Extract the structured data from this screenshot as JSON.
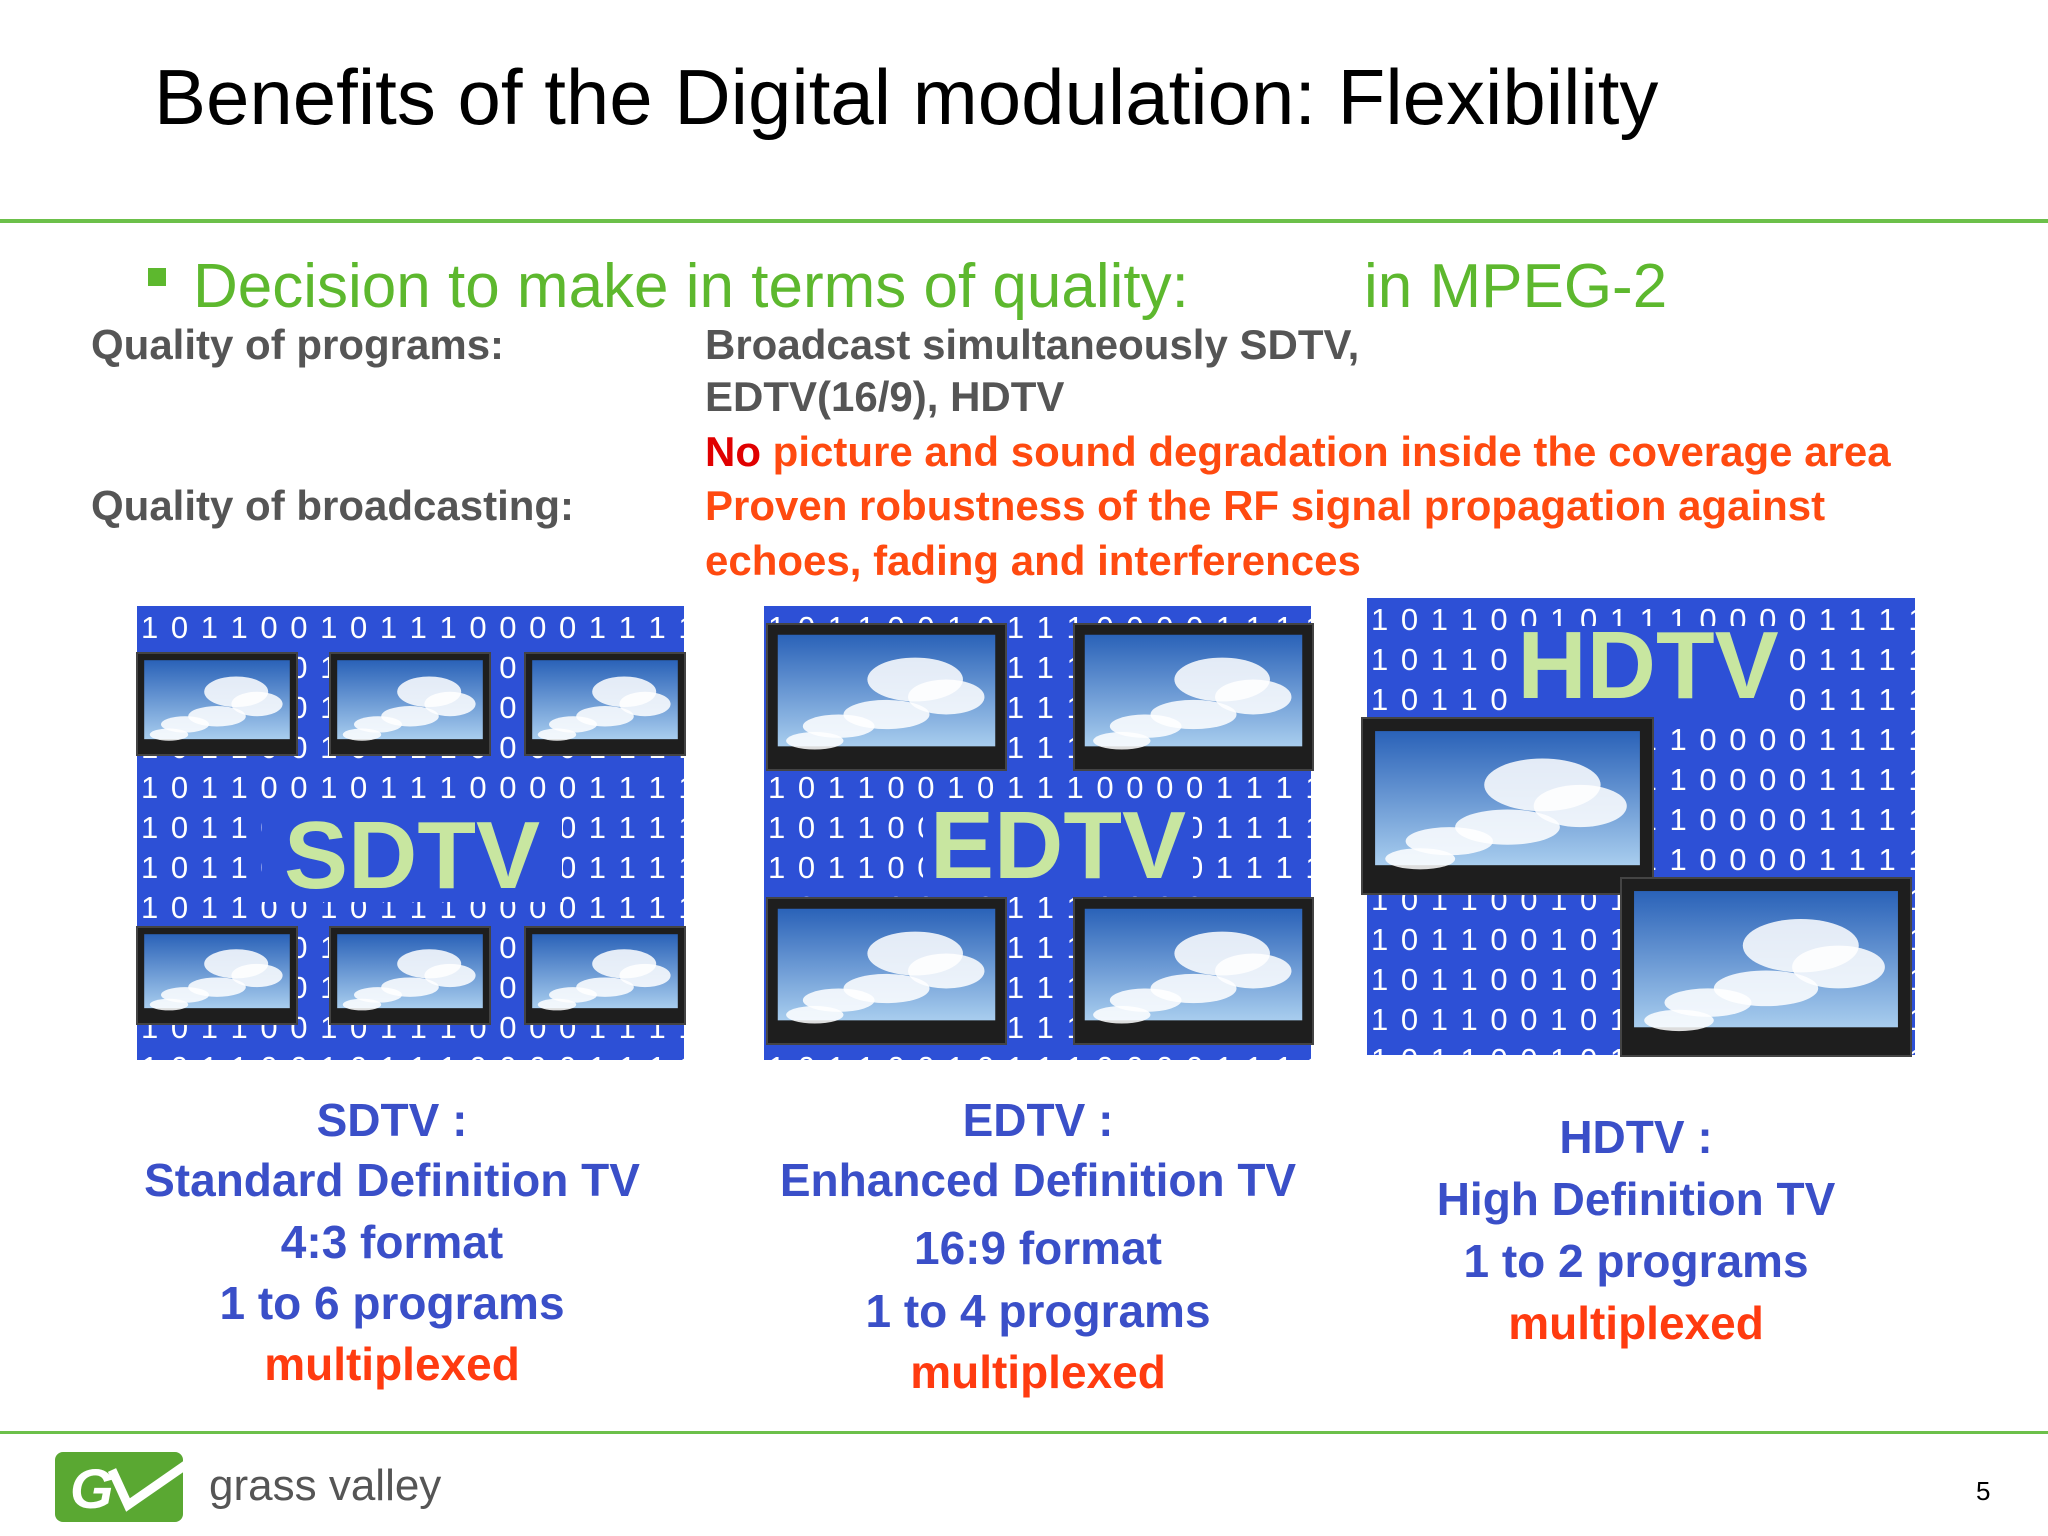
{
  "header": {
    "title": "Benefits of the Digital modulation: Flexibility"
  },
  "bullet": {
    "text": "Decision to make in terms of quality:",
    "suffix": "in MPEG-2"
  },
  "quality": [
    {
      "label": "Quality of programs:",
      "lines": [
        "Broadcast  simultaneously SDTV,",
        "EDTV(16/9), HDTV"
      ],
      "highlight": {
        "lead": "No",
        "text": "picture and sound degradation inside the coverage area"
      }
    },
    {
      "label": "Quality of broadcasting:",
      "lines": [
        "Proven robustness of the RF signal propagation against",
        "echoes, fading and interferences"
      ]
    }
  ],
  "binary": "1 0 1 1 0 0  1 0 1 1 1 0 0 0 0 1 1 1 1",
  "panels": [
    {
      "label": "SDTV",
      "caption": [
        "SDTV :",
        "Standard Definition TV",
        "4:3 format",
        "1 to 6 programs"
      ],
      "emphasis": "multiplexed"
    },
    {
      "label": "EDTV",
      "caption": [
        "EDTV :",
        "Enhanced Definition TV",
        "16:9 format",
        "1 to 4 programs"
      ],
      "emphasis": "multiplexed"
    },
    {
      "label": "HDTV",
      "caption": [
        "HDTV :",
        "High Definition TV",
        "1 to 2 programs"
      ],
      "emphasis": "multiplexed"
    }
  ],
  "footer": {
    "brand": "grass valley",
    "page": "5"
  }
}
